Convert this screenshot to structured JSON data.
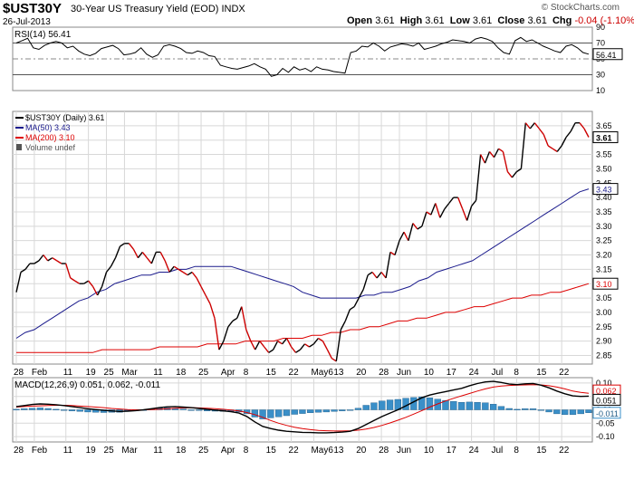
{
  "header": {
    "symbol": "$UST30Y",
    "description": "30-Year US Treasury Yield (EOD) INDX",
    "date": "26-Jul-2013",
    "watermark": "© StockCharts.com",
    "open_label": "Open",
    "open": "3.61",
    "high_label": "High",
    "high": "3.61",
    "low_label": "Low",
    "low": "3.61",
    "close_label": "Close",
    "close": "3.61",
    "chg_label": "Chg",
    "chg": "-0.04 (-1.10%)"
  },
  "colors": {
    "price_up": "#000000",
    "price_down": "#cc0000",
    "ma50": "#1a1a8c",
    "ma200": "#dd0000",
    "macd": "#000000",
    "signal": "#dd0000",
    "histogram": "#3a8fc8",
    "grid": "#d8d8d8"
  },
  "chart_data": [
    {
      "type": "line",
      "name": "rsi-panel",
      "title": "RSI(14) 56.41",
      "ylim": [
        10,
        90
      ],
      "yticks": [
        10,
        30,
        50,
        70,
        90
      ],
      "reference_lines": [
        30,
        70
      ],
      "last_value_label": "56.41",
      "values": [
        70,
        73,
        76,
        64,
        62,
        67,
        70,
        72,
        70,
        64,
        66,
        60,
        56,
        54,
        57,
        63,
        65,
        67,
        63,
        55,
        56,
        58,
        64,
        56,
        52,
        55,
        66,
        68,
        66,
        63,
        58,
        57,
        60,
        58,
        54,
        53,
        42,
        40,
        38,
        37,
        39,
        41,
        44,
        40,
        37,
        28,
        30,
        38,
        33,
        40,
        36,
        38,
        34,
        40,
        37,
        36,
        34,
        33,
        32,
        58,
        60,
        66,
        65,
        70,
        66,
        60,
        65,
        67,
        69,
        68,
        66,
        70,
        62,
        64,
        66,
        69,
        71,
        74,
        73,
        72,
        70,
        75,
        77,
        75,
        72,
        64,
        58,
        56,
        73,
        77,
        72,
        74,
        70,
        66,
        63,
        60,
        58,
        66,
        68,
        64,
        58,
        56
      ]
    },
    {
      "type": "line",
      "name": "price-panel",
      "legend": [
        "$UST30Y (Daily) 3.61",
        "MA(50) 3.43",
        "MA(200) 3.10",
        "Volume undef"
      ],
      "ylim": [
        2.82,
        3.7
      ],
      "yticks": [
        2.85,
        2.9,
        2.95,
        3.0,
        3.05,
        3.1,
        3.15,
        3.2,
        3.25,
        3.3,
        3.35,
        3.4,
        3.45,
        3.5,
        3.55,
        3.6,
        3.65
      ],
      "x_labels": [
        "28",
        "Feb",
        "11",
        "19",
        "25",
        "Mar",
        "11",
        "18",
        "25",
        "Apr",
        "8",
        "15",
        "22",
        "May6",
        "13",
        "20",
        "28",
        "Jun",
        "10",
        "17",
        "24",
        "Jul",
        "8",
        "15",
        "22"
      ],
      "x_label_slots": [
        0,
        4,
        11,
        16,
        20,
        24,
        31,
        36,
        41,
        46,
        51,
        56,
        61,
        66,
        71,
        76,
        81,
        85,
        91,
        96,
        101,
        106,
        111,
        116,
        121
      ],
      "series": [
        {
          "name": "$UST30Y (Daily)",
          "values": [
            3.07,
            3.14,
            3.15,
            3.17,
            3.17,
            3.18,
            3.2,
            3.18,
            3.19,
            3.18,
            3.17,
            3.17,
            3.12,
            3.11,
            3.1,
            3.1,
            3.11,
            3.09,
            3.06,
            3.09,
            3.14,
            3.16,
            3.19,
            3.23,
            3.24,
            3.24,
            3.22,
            3.19,
            3.21,
            3.19,
            3.17,
            3.21,
            3.21,
            3.18,
            3.14,
            3.16,
            3.15,
            3.14,
            3.13,
            3.14,
            3.12,
            3.09,
            3.06,
            3.03,
            2.98,
            2.87,
            2.9,
            2.95,
            2.97,
            2.98,
            3.02,
            2.94,
            2.9,
            2.87,
            2.9,
            2.88,
            2.86,
            2.87,
            2.9,
            2.89,
            2.91,
            2.88,
            2.86,
            2.87,
            2.89,
            2.88,
            2.89,
            2.91,
            2.9,
            2.87,
            2.84,
            2.83,
            2.94,
            2.97,
            3.01,
            3.02,
            3.05,
            3.08,
            3.13,
            3.14,
            3.12,
            3.14,
            3.12,
            3.21,
            3.2,
            3.25,
            3.28,
            3.25,
            3.31,
            3.29,
            3.3,
            3.35,
            3.34,
            3.38,
            3.33,
            3.36,
            3.38,
            3.4,
            3.4,
            3.36,
            3.32,
            3.37,
            3.39,
            3.55,
            3.52,
            3.56,
            3.54,
            3.57,
            3.56,
            3.49,
            3.47,
            3.49,
            3.5,
            3.66,
            3.64,
            3.66,
            3.64,
            3.62,
            3.58,
            3.57,
            3.56,
            3.58,
            3.61,
            3.63,
            3.66,
            3.66,
            3.64,
            3.61
          ]
        },
        {
          "name": "MA(50)",
          "last_value_label": "3.43",
          "values": [
            2.91,
            2.93,
            2.94,
            2.96,
            2.98,
            3.0,
            3.02,
            3.04,
            3.05,
            3.07,
            3.08,
            3.1,
            3.11,
            3.12,
            3.13,
            3.13,
            3.14,
            3.14,
            3.15,
            3.15,
            3.16,
            3.16,
            3.16,
            3.16,
            3.16,
            3.15,
            3.14,
            3.13,
            3.12,
            3.11,
            3.1,
            3.09,
            3.07,
            3.06,
            3.05,
            3.05,
            3.05,
            3.05,
            3.05,
            3.06,
            3.06,
            3.07,
            3.07,
            3.08,
            3.09,
            3.11,
            3.12,
            3.14,
            3.15,
            3.16,
            3.17,
            3.18,
            3.2,
            3.22,
            3.24,
            3.26,
            3.28,
            3.3,
            3.32,
            3.34,
            3.36,
            3.38,
            3.4,
            3.42,
            3.43
          ]
        },
        {
          "name": "MA(200)",
          "last_value_label": "3.10",
          "values": [
            2.86,
            2.86,
            2.86,
            2.86,
            2.86,
            2.86,
            2.86,
            2.86,
            2.86,
            2.87,
            2.87,
            2.87,
            2.87,
            2.87,
            2.87,
            2.88,
            2.88,
            2.88,
            2.88,
            2.88,
            2.89,
            2.89,
            2.89,
            2.89,
            2.9,
            2.9,
            2.9,
            2.9,
            2.91,
            2.91,
            2.91,
            2.92,
            2.92,
            2.93,
            2.93,
            2.94,
            2.94,
            2.95,
            2.95,
            2.96,
            2.97,
            2.97,
            2.98,
            2.98,
            2.99,
            3.0,
            3.0,
            3.01,
            3.02,
            3.02,
            3.03,
            3.04,
            3.05,
            3.05,
            3.06,
            3.06,
            3.07,
            3.07,
            3.08,
            3.09,
            3.1
          ]
        }
      ],
      "last_price_label": "3.61"
    },
    {
      "type": "line",
      "name": "macd-panel",
      "title": "MACD(12,26,9) 0.051, 0.062, -0.011",
      "ylim": [
        -0.12,
        0.12
      ],
      "yticks": [
        0.1,
        0.05,
        0.0,
        -0.05,
        -0.1
      ],
      "x_labels": [
        "28",
        "Feb",
        "11",
        "19",
        "25",
        "Mar",
        "11",
        "18",
        "25",
        "Apr",
        "8",
        "15",
        "22",
        "May6",
        "13",
        "20",
        "28",
        "Jun",
        "10",
        "17",
        "24",
        "Jul",
        "8",
        "15",
        "22"
      ],
      "x_label_slots": [
        0,
        4,
        11,
        16,
        20,
        24,
        31,
        36,
        41,
        46,
        51,
        56,
        61,
        66,
        71,
        76,
        81,
        85,
        91,
        96,
        101,
        106,
        111,
        116,
        121
      ],
      "series": [
        {
          "name": "MACD",
          "values": [
            0.012,
            0.016,
            0.02,
            0.022,
            0.021,
            0.019,
            0.016,
            0.012,
            0.008,
            0.004,
            0.001,
            -0.002,
            -0.004,
            -0.006,
            -0.005,
            -0.003,
            0.0,
            0.004,
            0.008,
            0.011,
            0.012,
            0.01,
            0.008,
            0.005,
            0.002,
            -0.001,
            -0.004,
            -0.007,
            -0.012,
            -0.025,
            -0.045,
            -0.062,
            -0.07,
            -0.076,
            -0.08,
            -0.082,
            -0.084,
            -0.085,
            -0.086,
            -0.086,
            -0.085,
            -0.083,
            -0.08,
            -0.07,
            -0.055,
            -0.04,
            -0.025,
            -0.012,
            0.0,
            0.015,
            0.03,
            0.045,
            0.055,
            0.062,
            0.068,
            0.074,
            0.08,
            0.09,
            0.098,
            0.104,
            0.106,
            0.102,
            0.096,
            0.094,
            0.097,
            0.098,
            0.092,
            0.082,
            0.07,
            0.06,
            0.052,
            0.05,
            0.051
          ]
        },
        {
          "name": "Signal",
          "values": [
            0.01,
            0.012,
            0.014,
            0.015,
            0.016,
            0.017,
            0.017,
            0.016,
            0.014,
            0.012,
            0.01,
            0.008,
            0.005,
            0.003,
            0.001,
            0.0,
            0.0,
            0.001,
            0.002,
            0.004,
            0.006,
            0.007,
            0.008,
            0.007,
            0.006,
            0.004,
            0.002,
            -0.001,
            -0.004,
            -0.01,
            -0.018,
            -0.028,
            -0.04,
            -0.05,
            -0.058,
            -0.065,
            -0.07,
            -0.074,
            -0.077,
            -0.078,
            -0.079,
            -0.079,
            -0.078,
            -0.076,
            -0.072,
            -0.066,
            -0.058,
            -0.049,
            -0.039,
            -0.028,
            -0.016,
            -0.003,
            0.01,
            0.022,
            0.033,
            0.043,
            0.052,
            0.061,
            0.07,
            0.078,
            0.085,
            0.089,
            0.091,
            0.092,
            0.093,
            0.094,
            0.093,
            0.09,
            0.085,
            0.078,
            0.07,
            0.065,
            0.062
          ]
        },
        {
          "name": "Histogram",
          "values": [
            0.002,
            0.004,
            0.006,
            0.007,
            0.005,
            0.002,
            -0.001,
            -0.004,
            -0.006,
            -0.008,
            -0.009,
            -0.01,
            -0.009,
            -0.009,
            -0.006,
            -0.003,
            0.0,
            0.003,
            0.006,
            0.007,
            0.006,
            0.003,
            0.0,
            -0.002,
            -0.004,
            -0.005,
            -0.006,
            -0.006,
            -0.008,
            -0.015,
            -0.027,
            -0.034,
            -0.03,
            -0.026,
            -0.022,
            -0.017,
            -0.014,
            -0.011,
            -0.009,
            -0.008,
            -0.006,
            -0.004,
            -0.002,
            0.006,
            0.017,
            0.026,
            0.033,
            0.037,
            0.039,
            0.043,
            0.046,
            0.048,
            0.045,
            0.04,
            0.035,
            0.031,
            0.028,
            0.029,
            0.028,
            0.026,
            0.021,
            0.013,
            0.005,
            0.002,
            0.004,
            0.004,
            -0.001,
            -0.008,
            -0.015,
            -0.018,
            -0.018,
            -0.015,
            -0.011
          ]
        }
      ],
      "last_value_labels": [
        "0.062",
        "0.051",
        "-0.011"
      ]
    }
  ]
}
